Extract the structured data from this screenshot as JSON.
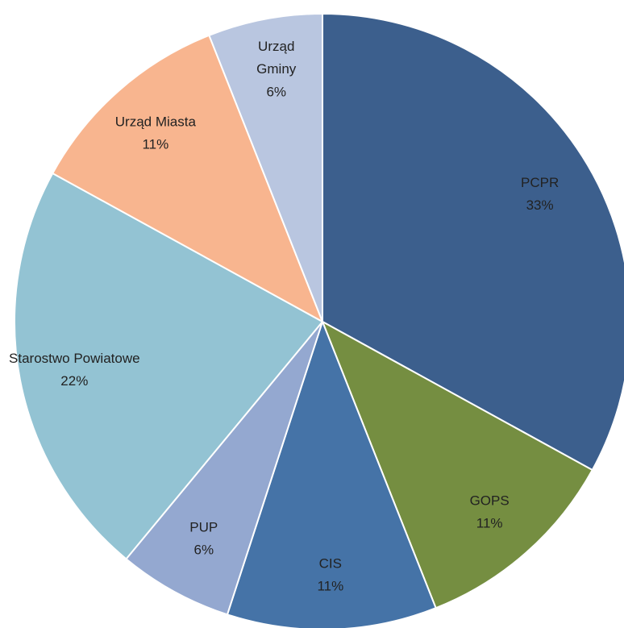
{
  "chart_data": {
    "type": "pie",
    "categories": [
      "PCPR",
      "GOPS",
      "CIS",
      "PUP",
      "Starostwo Powiatowe",
      "Urząd Miasta",
      "Urząd Gminy"
    ],
    "values": [
      33,
      11,
      11,
      6,
      22,
      11,
      6
    ],
    "value_labels": [
      "33%",
      "11%",
      "11%",
      "6%",
      "22%",
      "11%",
      "6%"
    ],
    "colors": [
      "#3c5f8d",
      "#758e41",
      "#4573a7",
      "#94a8d0",
      "#93c3d3",
      "#f8b58f",
      "#b9c6e0"
    ]
  }
}
